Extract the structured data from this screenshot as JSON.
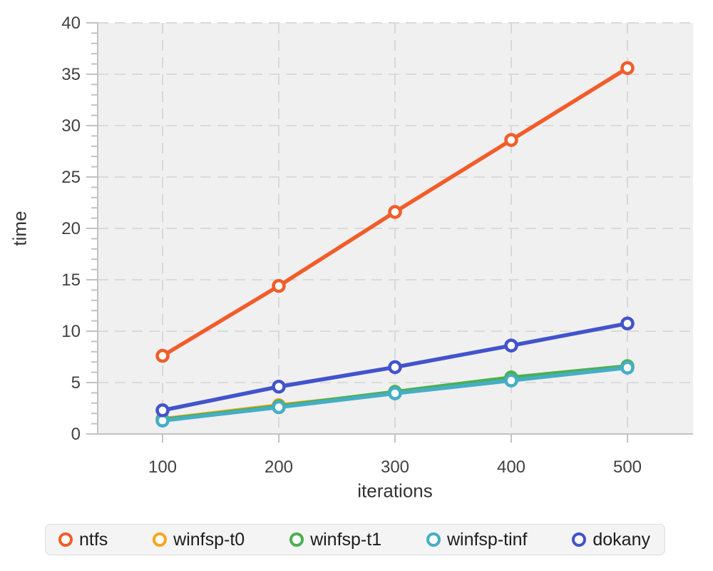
{
  "chart_data": {
    "type": "line",
    "title": "",
    "xlabel": "iterations",
    "ylabel": "time",
    "x": [
      100,
      200,
      300,
      400,
      500
    ],
    "x_tick_labels": [
      "100",
      "200",
      "300",
      "400",
      "500"
    ],
    "xlim": [
      44,
      556
    ],
    "ylim": [
      0,
      40
    ],
    "y_ticks_major": [
      0,
      5,
      10,
      15,
      20,
      25,
      30,
      35,
      40
    ],
    "y_minor_step": 1,
    "grid": "dashed",
    "legend_position": "bottom",
    "series": [
      {
        "name": "ntfs",
        "color": "#f15d2a",
        "values": [
          7.6,
          14.4,
          21.6,
          28.6,
          35.6
        ]
      },
      {
        "name": "winfsp-t0",
        "color": "#f8a61d",
        "values": [
          1.45,
          2.8,
          4.0,
          5.3,
          6.5
        ]
      },
      {
        "name": "winfsp-t1",
        "color": "#4caf50",
        "values": [
          1.4,
          2.7,
          4.1,
          5.5,
          6.6
        ]
      },
      {
        "name": "winfsp-tinf",
        "color": "#45aec4",
        "values": [
          1.3,
          2.6,
          3.95,
          5.2,
          6.45
        ]
      },
      {
        "name": "dokany",
        "color": "#4253cc",
        "values": [
          2.3,
          4.6,
          6.5,
          8.6,
          10.75
        ]
      }
    ],
    "draw_order": [
      1,
      2,
      3,
      4,
      0
    ],
    "style": {
      "plot_bg": "#f0f0f0",
      "grid_color": "#d6d6d6",
      "axis_color": "#c2c2c2",
      "tick_label_color": "#414141",
      "marker_fill": "#ffffff"
    }
  }
}
